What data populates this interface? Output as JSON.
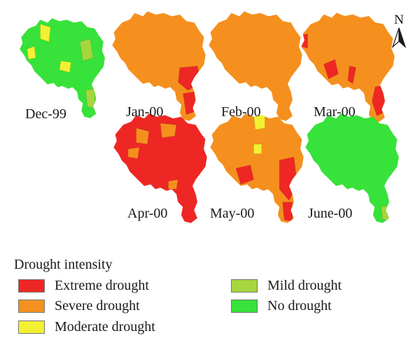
{
  "colors": {
    "extreme": "#ee2724",
    "severe": "#f5901e",
    "moderate": "#f3f032",
    "mild": "#a6d63d",
    "none": "#37e23a"
  },
  "compass": {
    "label": "N"
  },
  "maps": [
    {
      "label": "Dec-99",
      "base": "none",
      "patches": [
        "moderate",
        "mild",
        "moderate",
        "moderate",
        "mild"
      ]
    },
    {
      "label": "Jan-00",
      "base": "severe",
      "patches": [
        "extreme",
        "extreme"
      ]
    },
    {
      "label": "Feb-00",
      "base": "severe",
      "patches": []
    },
    {
      "label": "Mar-00",
      "base": "severe",
      "patches": [
        "extreme",
        "extreme",
        "extreme",
        "extreme"
      ]
    },
    {
      "label": "Apr-00",
      "base": "extreme",
      "patches": [
        "severe",
        "severe",
        "severe",
        "severe"
      ]
    },
    {
      "label": "May-00",
      "base": "severe",
      "patches": [
        "extreme",
        "extreme",
        "extreme",
        "moderate",
        "moderate"
      ]
    },
    {
      "label": "June-00",
      "base": "none",
      "patches": [
        "mild"
      ]
    }
  ],
  "legend": {
    "title": "Drought intensity",
    "items": [
      {
        "label": "Extreme drought",
        "color_key": "extreme"
      },
      {
        "label": "Severe drought",
        "color_key": "severe"
      },
      {
        "label": "Moderate drought",
        "color_key": "moderate"
      },
      {
        "label": "Mild drought",
        "color_key": "mild"
      },
      {
        "label": "No drought",
        "color_key": "none"
      }
    ]
  }
}
